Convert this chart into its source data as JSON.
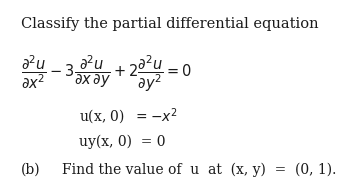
{
  "title": "Classify the partial differential equation",
  "pde": "$\\dfrac{\\partial^2 u}{\\partial x^2} - 3\\dfrac{\\partial^2 u}{\\partial x\\, \\partial y} + 2\\dfrac{\\partial^2 u}{\\partial y^2} = 0$",
  "line2": "u(x, 0)  =  −x²",
  "line3": "uy(x, 0)  =  0",
  "line4_label": "(b)",
  "line4_text": "Find the value of  u  at  (x, y)  =  (0, 1).",
  "bg_color": "#ffffff",
  "text_color": "#1a1a1a",
  "title_fontsize": 10.5,
  "body_fontsize": 10.0,
  "pde_fontsize": 10.5
}
